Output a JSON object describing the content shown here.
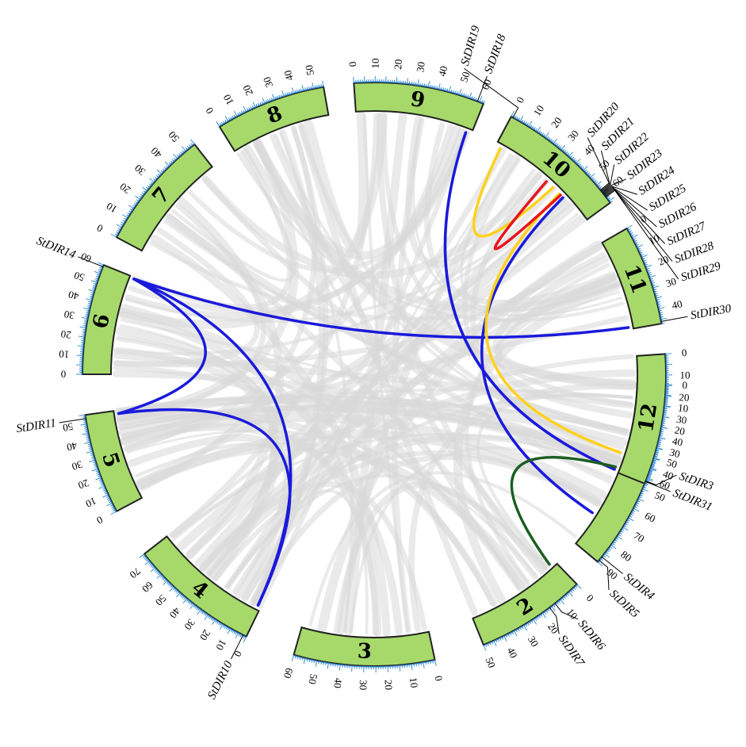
{
  "chromosomes": [
    {
      "id": "1",
      "length": 90
    },
    {
      "id": "2",
      "length": 50
    },
    {
      "id": "3",
      "length": 60
    },
    {
      "id": "4",
      "length": 75
    },
    {
      "id": "5",
      "length": 55
    },
    {
      "id": "6",
      "length": 60
    },
    {
      "id": "7",
      "length": 55
    },
    {
      "id": "8",
      "length": 55
    },
    {
      "id": "9",
      "length": 62
    },
    {
      "id": "10",
      "length": 66
    },
    {
      "id": "11",
      "length": 47
    },
    {
      "id": "12",
      "length": 63
    }
  ],
  "tick_step": 10,
  "genes": [
    {
      "name": "StDIR3",
      "chrom": "1",
      "pos": 46
    },
    {
      "name": "StDIR4",
      "chrom": "1",
      "pos": 87
    },
    {
      "name": "StDIR5",
      "chrom": "1",
      "pos": 89
    },
    {
      "name": "StDIR6",
      "chrom": "2",
      "pos": 13
    },
    {
      "name": "StDIR7",
      "chrom": "2",
      "pos": 16
    },
    {
      "name": "StDIR10",
      "chrom": "4",
      "pos": 2
    },
    {
      "name": "StDIR11",
      "chrom": "5",
      "pos": 53
    },
    {
      "name": "StDIR14",
      "chrom": "6",
      "pos": 59
    },
    {
      "name": "StDIR18",
      "chrom": "9",
      "pos": 59
    },
    {
      "name": "StDIR19",
      "chrom": "10",
      "pos": 1
    },
    {
      "name": "StDIR20",
      "chrom": "10",
      "pos": 58
    },
    {
      "name": "StDIR21",
      "chrom": "10",
      "pos": 58.5
    },
    {
      "name": "StDIR22",
      "chrom": "10",
      "pos": 59
    },
    {
      "name": "StDIR23",
      "chrom": "10",
      "pos": 59.5
    },
    {
      "name": "StDIR24",
      "chrom": "10",
      "pos": 60
    },
    {
      "name": "StDIR25",
      "chrom": "10",
      "pos": 60.5
    },
    {
      "name": "StDIR26",
      "chrom": "10",
      "pos": 61
    },
    {
      "name": "StDIR27",
      "chrom": "10",
      "pos": 61.5
    },
    {
      "name": "StDIR28",
      "chrom": "10",
      "pos": 62
    },
    {
      "name": "StDIR29",
      "chrom": "10",
      "pos": 62.5
    },
    {
      "name": "StDIR30",
      "chrom": "11",
      "pos": 46
    },
    {
      "name": "StDIR31",
      "chrom": "12",
      "pos": 62
    }
  ],
  "links": [
    {
      "from": {
        "chrom": "6",
        "pos": 59
      },
      "to": {
        "chrom": "11",
        "pos": 46
      },
      "color": "#1a1adb"
    },
    {
      "from": {
        "chrom": "9",
        "pos": 59
      },
      "to": {
        "chrom": "12",
        "pos": 62
      },
      "color": "#1a1adb"
    },
    {
      "from": {
        "chrom": "10",
        "pos": 48
      },
      "to": {
        "chrom": "1",
        "pos": 72
      },
      "color": "#1a1adb"
    },
    {
      "from": {
        "chrom": "6",
        "pos": 59
      },
      "to": {
        "chrom": "4",
        "pos": 2
      },
      "color": "#1a1adb"
    },
    {
      "from": {
        "chrom": "6",
        "pos": 59
      },
      "to": {
        "chrom": "5",
        "pos": 53
      },
      "color": "#1a1adb"
    },
    {
      "from": {
        "chrom": "5",
        "pos": 53
      },
      "to": {
        "chrom": "4",
        "pos": 2
      },
      "color": "#1a1adb"
    },
    {
      "from": {
        "chrom": "10",
        "pos": 3
      },
      "to": {
        "chrom": "10",
        "pos": 40
      },
      "color": "#ffd11a"
    },
    {
      "from": {
        "chrom": "10",
        "pos": 45
      },
      "to": {
        "chrom": "1",
        "pos": 37
      },
      "color": "#ffd11a"
    },
    {
      "from": {
        "chrom": "10",
        "pos": 46
      },
      "to": {
        "chrom": "10",
        "pos": 35
      },
      "color": "#e8141e"
    },
    {
      "from": {
        "chrom": "1",
        "pos": 45
      },
      "to": {
        "chrom": "2",
        "pos": 3
      },
      "color": "#1b5e20"
    }
  ],
  "colors": {
    "chromosome_fill": "#a6d96a",
    "tick": "#3a8fd6",
    "background_link": "#d9d9d9"
  }
}
